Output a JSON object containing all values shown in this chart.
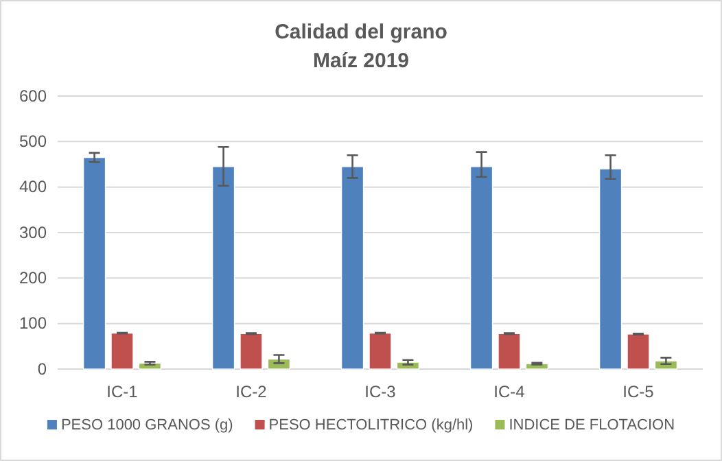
{
  "chart_data": {
    "type": "bar",
    "title": "Calidad del grano",
    "subtitle": "Maíz 2019",
    "categories": [
      "IC-1",
      "IC-2",
      "IC-3",
      "IC-4",
      "IC-5"
    ],
    "series": [
      {
        "name": "PESO 1000 GRANOS (g)",
        "color": "#4f81bd",
        "values": [
          465,
          445,
          445,
          445,
          440
        ],
        "errors": [
          10,
          [
            403,
            488
          ],
          [
            420,
            470
          ],
          [
            422,
            477
          ],
          [
            418,
            470
          ]
        ]
      },
      {
        "name": "PESO HECTOLITRICO (kg/hl)",
        "color": "#c0504d",
        "values": [
          79,
          78,
          79,
          78,
          77
        ],
        "errors": [
          1,
          1,
          1,
          1,
          1
        ]
      },
      {
        "name": "INDICE DE FLOTACION",
        "color": "#9bbb59",
        "values": [
          13,
          22,
          15,
          12,
          18
        ],
        "errors": [
          3,
          9,
          5,
          2,
          7
        ]
      }
    ],
    "ylim": [
      0,
      600
    ],
    "yticks": [
      0,
      100,
      200,
      300,
      400,
      500,
      600
    ],
    "grid": "y",
    "legend": "bottom"
  }
}
